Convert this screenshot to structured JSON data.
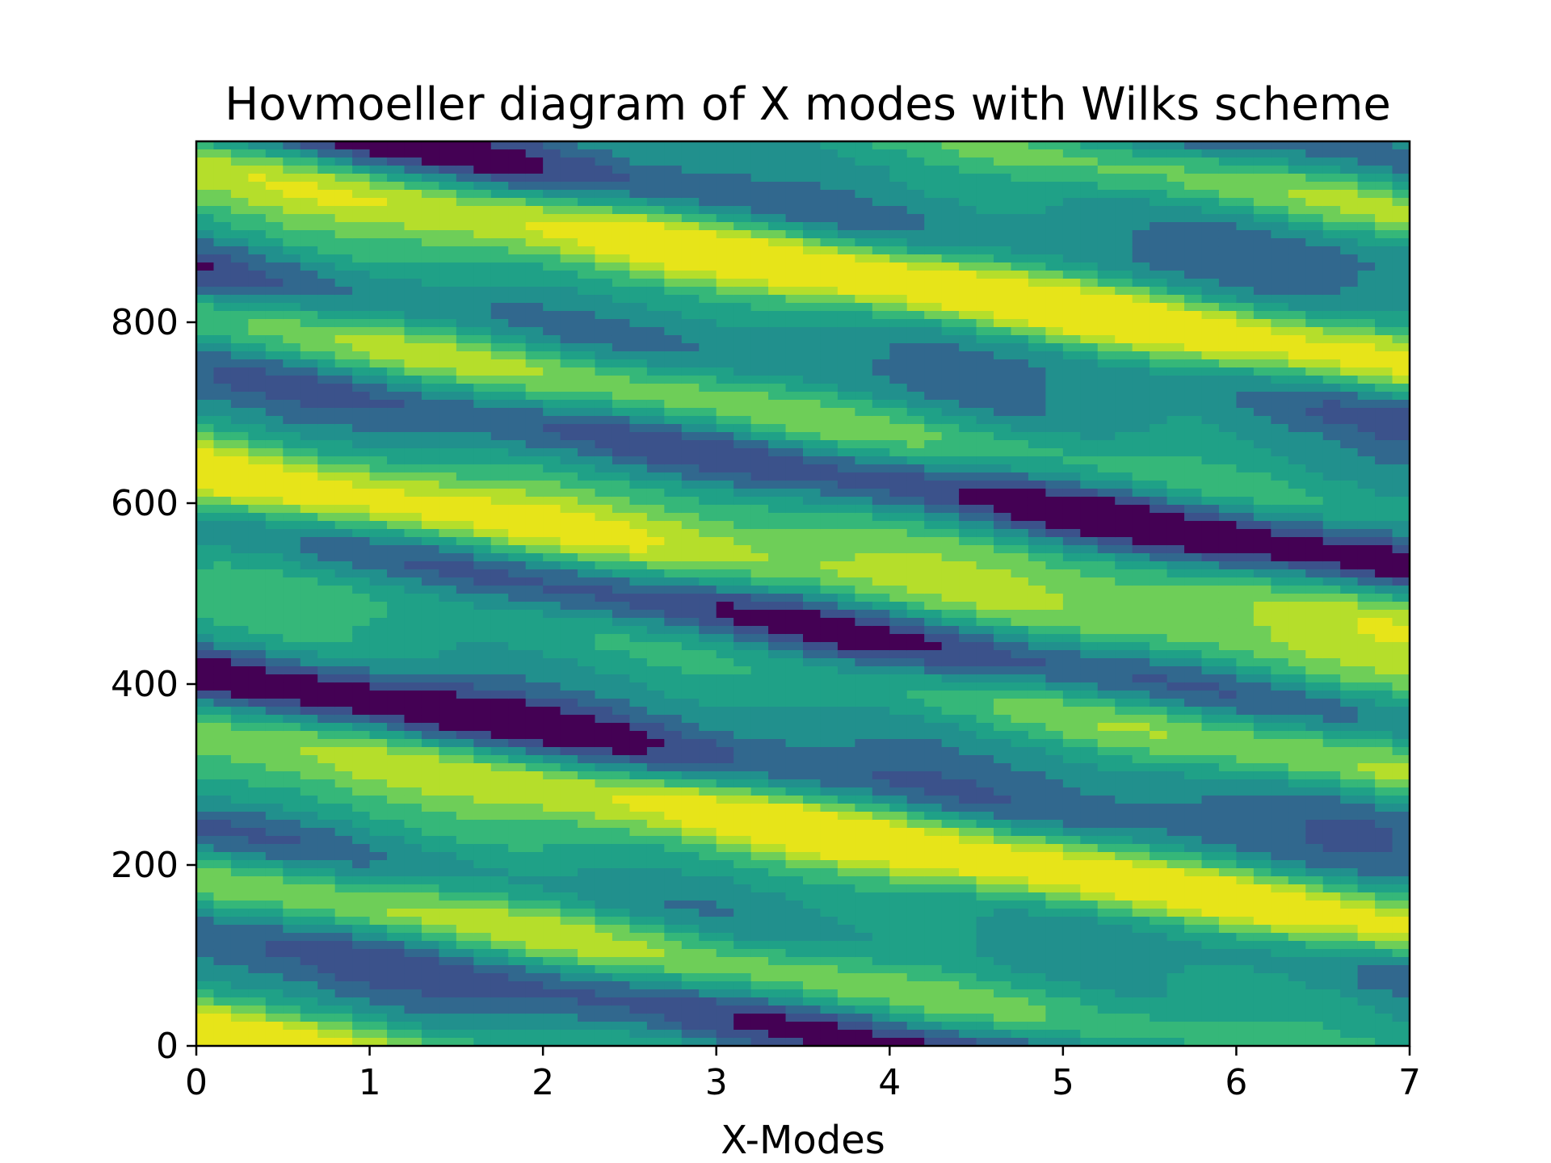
{
  "chart_data": {
    "type": "heatmap",
    "title": "Hovmoeller diagram of X modes with Wilks scheme",
    "xlabel": "X-Modes",
    "ylabel": "",
    "xlim": [
      0,
      7
    ],
    "ylim": [
      0,
      1000
    ],
    "x_ticks": [
      "0",
      "1",
      "2",
      "3",
      "4",
      "5",
      "6",
      "7"
    ],
    "y_ticks": [
      "0",
      "200",
      "400",
      "600",
      "800"
    ],
    "x_tick_values": [
      0,
      1,
      2,
      3,
      4,
      5,
      6,
      7
    ],
    "y_tick_values": [
      0,
      200,
      400,
      600,
      800
    ],
    "colormap": [
      "#440154",
      "#3b528b",
      "#31688e",
      "#21908d",
      "#1fa187",
      "#35b779",
      "#6ece58",
      "#b5de2b",
      "#e7e419"
    ],
    "grid": false,
    "legend": "none"
  }
}
